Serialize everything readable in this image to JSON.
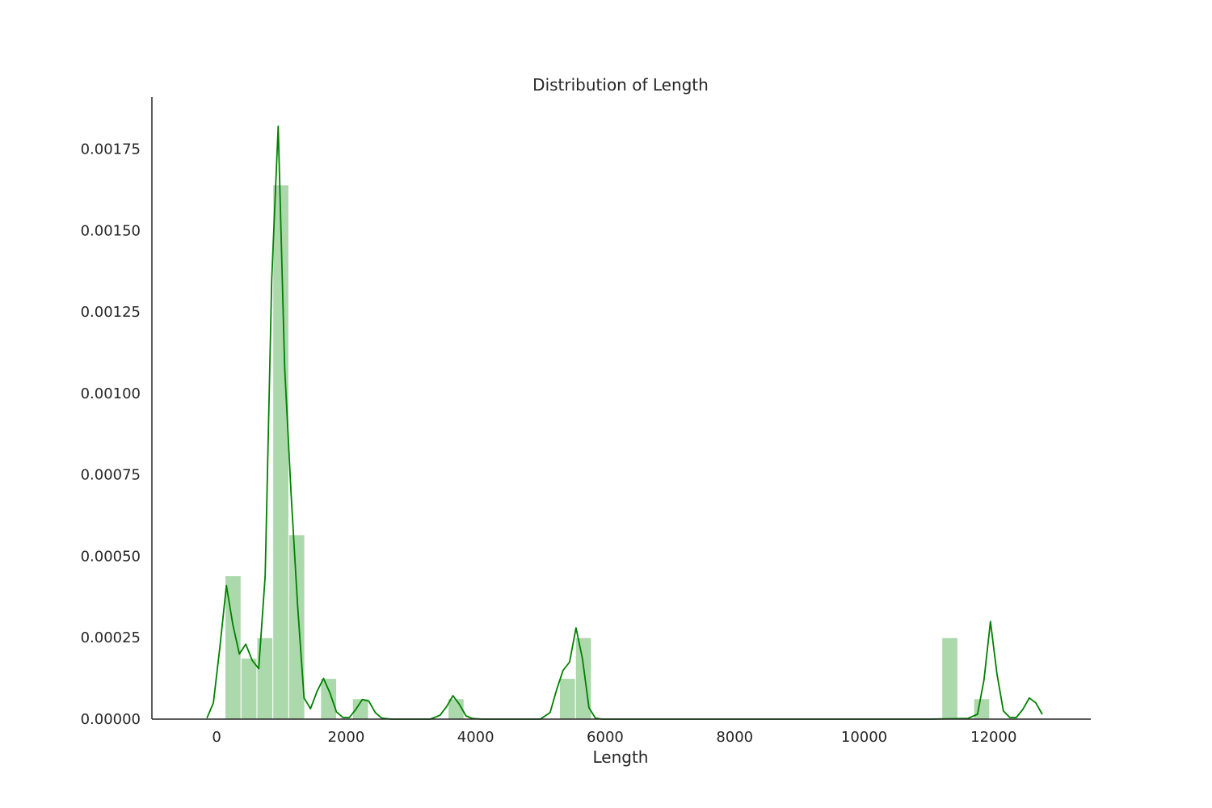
{
  "chart_data": {
    "type": "bar",
    "title": "Distribution of Length",
    "xlabel": "Length",
    "ylabel": "",
    "xlim": [
      -1000,
      13500
    ],
    "ylim": [
      0,
      0.00191
    ],
    "grid": false,
    "legend": "none",
    "colors": {
      "bars": "#2ca02c",
      "kde": "#008000",
      "axes": "#262626"
    },
    "xticks": [
      {
        "value": 0,
        "label": "0"
      },
      {
        "value": 2000,
        "label": "2000"
      },
      {
        "value": 4000,
        "label": "4000"
      },
      {
        "value": 6000,
        "label": "6000"
      },
      {
        "value": 8000,
        "label": "8000"
      },
      {
        "value": 10000,
        "label": "10000"
      },
      {
        "value": 12000,
        "label": "12000"
      }
    ],
    "yticks": [
      {
        "value": 0.0,
        "label": "0.00000"
      },
      {
        "value": 0.00025,
        "label": "0.00025"
      },
      {
        "value": 0.0005,
        "label": "0.00050"
      },
      {
        "value": 0.00075,
        "label": "0.00075"
      },
      {
        "value": 0.001,
        "label": "0.00100"
      },
      {
        "value": 0.00125,
        "label": "0.00125"
      },
      {
        "value": 0.0015,
        "label": "0.00150"
      },
      {
        "value": 0.00175,
        "label": "0.00175"
      }
    ],
    "histogram": {
      "bin_start": 130,
      "bin_width": 246,
      "values": [
        0.00044,
        0.000187,
        0.00025,
        0.00164,
        0.000566,
        0,
        0.000125,
        0,
        6.25e-05,
        0,
        0,
        0,
        0,
        0,
        6.25e-05,
        0,
        0,
        0,
        0,
        0,
        0,
        0.000125,
        0.00025,
        0,
        0,
        0,
        0,
        0,
        0,
        0,
        0,
        0,
        0,
        0,
        0,
        0,
        0,
        0,
        0,
        0,
        0,
        0,
        0,
        0,
        0,
        0.00025,
        0,
        6.25e-05
      ]
    },
    "kde": {
      "x": [
        -150,
        -50,
        50,
        150,
        250,
        350,
        450,
        550,
        650,
        750,
        850,
        950,
        1050,
        1150,
        1250,
        1350,
        1450,
        1550,
        1650,
        1750,
        1850,
        1950,
        2050,
        2150,
        2250,
        2350,
        2450,
        2550,
        2700,
        3000,
        3300,
        3450,
        3550,
        3650,
        3750,
        3850,
        3950,
        4100,
        4500,
        5000,
        5150,
        5250,
        5350,
        5450,
        5550,
        5650,
        5750,
        5850,
        5950,
        6100,
        7000,
        9000,
        11000,
        11600,
        11750,
        11850,
        11950,
        12050,
        12150,
        12250,
        12350,
        12450,
        12550,
        12650,
        12750
      ],
      "y": [
        3e-06,
        5e-05,
        0.00022,
        0.00041,
        0.00029,
        0.0002,
        0.00023,
        0.00018,
        0.000155,
        0.00044,
        0.00135,
        0.00182,
        0.00108,
        0.00069,
        0.00035,
        6.5e-05,
        3.2e-05,
        8.5e-05,
        0.000125,
        8e-05,
        2.2e-05,
        5e-06,
        5e-06,
        3e-05,
        6e-05,
        5.5e-05,
        2e-05,
        3e-06,
        0,
        0,
        0,
        1.2e-05,
        3.8e-05,
        7.2e-05,
        4.5e-05,
        1e-05,
        2e-06,
        0,
        0,
        0,
        2e-05,
        9e-05,
        0.00015,
        0.000175,
        0.00028,
        0.000185,
        3.5e-05,
        3e-06,
        0,
        0,
        0,
        0,
        0,
        2e-06,
        1.5e-05,
        0.00012,
        0.0003,
        0.00014,
        2.5e-05,
        5e-06,
        5e-06,
        3e-05,
        6.5e-05,
        5e-05,
        1.5e-05
      ]
    }
  }
}
